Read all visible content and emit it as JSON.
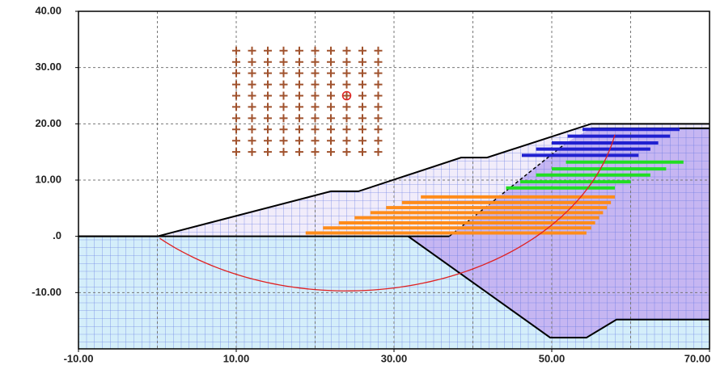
{
  "chart_data": {
    "type": "slope",
    "xlim": [
      -10,
      70
    ],
    "ylim": [
      -20,
      40
    ],
    "xticks": [
      {
        "value": -10,
        "label": "-10.00"
      },
      {
        "value": 10,
        "label": "10.00"
      },
      {
        "value": 30,
        "label": "30.00"
      },
      {
        "value": 50,
        "label": "50.00"
      },
      {
        "value": 70,
        "label": "70.00"
      }
    ],
    "yticks": [
      {
        "value": 40,
        "label": "40.00"
      },
      {
        "value": 30,
        "label": "30.00"
      },
      {
        "value": 20,
        "label": "20.00"
      },
      {
        "value": 10,
        "label": "10.00"
      },
      {
        "value": 0,
        "label": ".0"
      },
      {
        "value": -10,
        "label": "-10.00"
      }
    ],
    "xgrid": [
      0,
      10,
      20,
      30,
      40,
      50,
      60
    ],
    "ygrid": [
      -10,
      10,
      20,
      30
    ],
    "surface": {
      "x": [
        -10,
        0,
        22,
        25.5,
        38.5,
        41.8,
        55,
        70
      ],
      "y": [
        0,
        0,
        8,
        8,
        14,
        14,
        20,
        20
      ]
    },
    "layer_line": {
      "x": [
        -10,
        37
      ],
      "y": [
        0,
        0
      ]
    },
    "weak_zone": {
      "x": [
        31.8,
        37,
        52,
        55,
        70,
        70,
        58.2,
        54.4,
        49.8
      ],
      "y": [
        0,
        0,
        16.8,
        19.2,
        19.2,
        -14.8,
        -14.8,
        -18,
        -18
      ]
    },
    "weak_boundary": {
      "x": [
        31.8,
        49.8,
        54.4,
        58.2,
        70
      ],
      "y": [
        0,
        -18,
        -18,
        -14.8,
        -14.8
      ]
    },
    "top_boundary": {
      "x": [
        55,
        70
      ],
      "y": [
        19.2,
        19.2
      ]
    },
    "dashed_boundary": {
      "x": [
        37,
        52
      ],
      "y": [
        0,
        16.8
      ]
    },
    "search_grid": {
      "color": "#a0522d",
      "x": [
        10,
        12,
        14,
        16,
        18,
        20,
        22,
        24,
        26,
        28
      ],
      "y": [
        15,
        17,
        19,
        21,
        23,
        25,
        27,
        29,
        31,
        33
      ]
    },
    "critical_circle": {
      "color": "#e02020",
      "cx": 24,
      "cy": 25,
      "r": 34.7,
      "x_start": 0.3,
      "x_end": 58
    },
    "reinforcement": [
      {
        "color": "#ff8c1a",
        "y": [
          0.6,
          1.5,
          2.4,
          3.3,
          4.2,
          5.1,
          6.0,
          7.0
        ],
        "x0": [
          18.8,
          21,
          23,
          25,
          27,
          29,
          31,
          33.4
        ],
        "x1": [
          54.4,
          55,
          55.5,
          56,
          56.5,
          57,
          57.5,
          58
        ]
      },
      {
        "color": "#22dd22",
        "y": [
          8.6,
          9.7,
          10.9,
          12.0,
          13.2
        ],
        "x0": [
          44.2,
          46,
          48,
          50,
          51.8
        ],
        "x1": [
          58,
          60,
          62.5,
          64.5,
          66.7
        ]
      },
      {
        "color": "#2020d0",
        "y": [
          14.4,
          15.5,
          16.6,
          17.8,
          19.0
        ],
        "x0": [
          46.2,
          48,
          50,
          52,
          53.9
        ],
        "x1": [
          61,
          62.5,
          63.5,
          65,
          66.2
        ]
      }
    ]
  }
}
